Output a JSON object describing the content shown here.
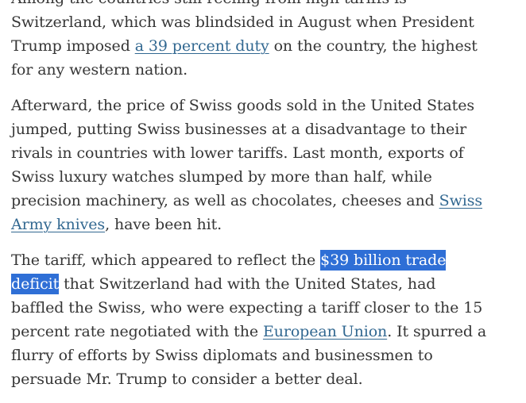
{
  "article": {
    "p1": {
      "text_before": "Among the countries still reeling from high tariffs is Switzerland, which was blindsided in August when President Trump imposed ",
      "link": "a 39 percent duty",
      "text_after": " on the country, the highest for any western nation."
    },
    "p2": {
      "text_before": "Afterward, the price of Swiss goods sold in the United States jumped, putting Swiss businesses at a disadvantage to their rivals in countries with lower tariffs. Last month, exports of Swiss luxury watches slumped by more than half, while precision machinery, as well as chocolates, cheeses and ",
      "link": "Swiss Army knives",
      "text_after": ", have been hit."
    },
    "p3": {
      "text_before": "The tariff, which appeared to reflect the ",
      "highlight": "$39 billion trade deficit",
      "text_middle": " that Switzerland had with the United States, had baffled the Swiss, who were expecting a tariff closer to the 15 percent rate negotiated with the ",
      "link": "European Union",
      "text_after": ". It spurred a flurry of efforts by Swiss diplomats and businessmen to persuade Mr. Trump to consider a better deal."
    }
  },
  "colors": {
    "text": "#363636",
    "link": "#326891",
    "highlight_bg": "#2f6fd6",
    "highlight_text": "#ffffff"
  }
}
